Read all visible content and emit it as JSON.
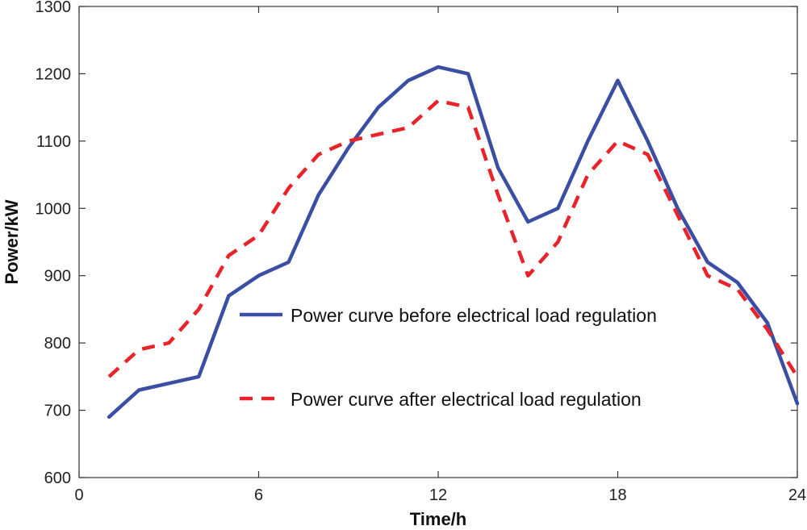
{
  "chart_data": {
    "type": "line",
    "title": "",
    "xlabel": "Time/h",
    "ylabel": "Power/kW",
    "xlim": [
      0,
      24
    ],
    "ylim": [
      600,
      1300
    ],
    "xticks": [
      0,
      6,
      12,
      18,
      24
    ],
    "yticks": [
      600,
      700,
      800,
      900,
      1000,
      1100,
      1200,
      1300
    ],
    "grid": false,
    "legend_position": "center-right",
    "x": [
      1,
      2,
      3,
      4,
      5,
      6,
      7,
      8,
      9,
      10,
      11,
      12,
      13,
      14,
      15,
      16,
      17,
      18,
      19,
      20,
      21,
      22,
      23,
      24
    ],
    "series": [
      {
        "name": "Power curve before electrical load regulation",
        "color": "#3a4fa3",
        "style": "solid",
        "values": [
          690,
          730,
          740,
          750,
          870,
          900,
          920,
          1020,
          1090,
          1150,
          1190,
          1210,
          1200,
          1060,
          980,
          1000,
          1100,
          1190,
          1100,
          1000,
          920,
          890,
          830,
          710
        ]
      },
      {
        "name": "Power curve after electrical load regulation",
        "color": "#e8232a",
        "style": "dashed",
        "values": [
          750,
          790,
          800,
          850,
          930,
          960,
          1030,
          1080,
          1100,
          1110,
          1120,
          1160,
          1150,
          1020,
          900,
          950,
          1050,
          1100,
          1080,
          990,
          900,
          880,
          820,
          750
        ]
      }
    ]
  }
}
